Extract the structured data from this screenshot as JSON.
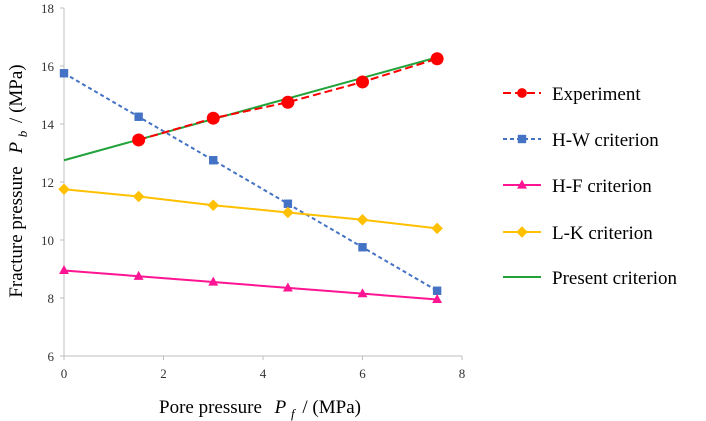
{
  "chart_data": {
    "type": "line",
    "title": "",
    "xlabel": {
      "prefix": "Pore pressure",
      "symbol": "P",
      "subscript": "f",
      "suffix": "/ (MPa)"
    },
    "ylabel": {
      "prefix": "Fracture pressure",
      "symbol": "P",
      "subscript": "b",
      "suffix": "/ (MPa)"
    },
    "xlim": [
      0,
      8
    ],
    "ylim": [
      6,
      18
    ],
    "xticks": [
      0,
      2,
      4,
      6,
      8
    ],
    "yticks": [
      6,
      8,
      10,
      12,
      14,
      16,
      18
    ],
    "grid": false,
    "legend_position": "right",
    "series": [
      {
        "name": "Experiment",
        "color": "#ff0000",
        "line_style": "dashed",
        "marker": "circle",
        "x": [
          1.5,
          3.0,
          4.5,
          6.0,
          7.5
        ],
        "y": [
          13.45,
          14.2,
          14.75,
          15.45,
          16.25
        ]
      },
      {
        "name": "H-W criterion",
        "color": "#4472c4",
        "line_style": "dotted",
        "marker": "square",
        "x": [
          0,
          1.5,
          3.0,
          4.5,
          6.0,
          7.5
        ],
        "y": [
          15.75,
          14.25,
          12.75,
          11.25,
          9.75,
          8.25
        ]
      },
      {
        "name": "H-F criterion",
        "color": "#ff1493",
        "line_style": "solid",
        "marker": "triangle",
        "x": [
          0,
          1.5,
          3.0,
          4.5,
          6.0,
          7.5
        ],
        "y": [
          8.95,
          8.75,
          8.55,
          8.35,
          8.15,
          7.95
        ]
      },
      {
        "name": "L-K criterion",
        "color": "#ffc000",
        "line_style": "solid",
        "marker": "diamond",
        "x": [
          0,
          1.5,
          3.0,
          4.5,
          6.0,
          7.5
        ],
        "y": [
          11.75,
          11.5,
          11.2,
          10.95,
          10.7,
          10.4
        ]
      },
      {
        "name": "Present criterion",
        "color": "#22a33a",
        "line_style": "solid",
        "marker": "none",
        "x": [
          0,
          7.5
        ],
        "y": [
          12.75,
          16.3
        ]
      }
    ]
  }
}
